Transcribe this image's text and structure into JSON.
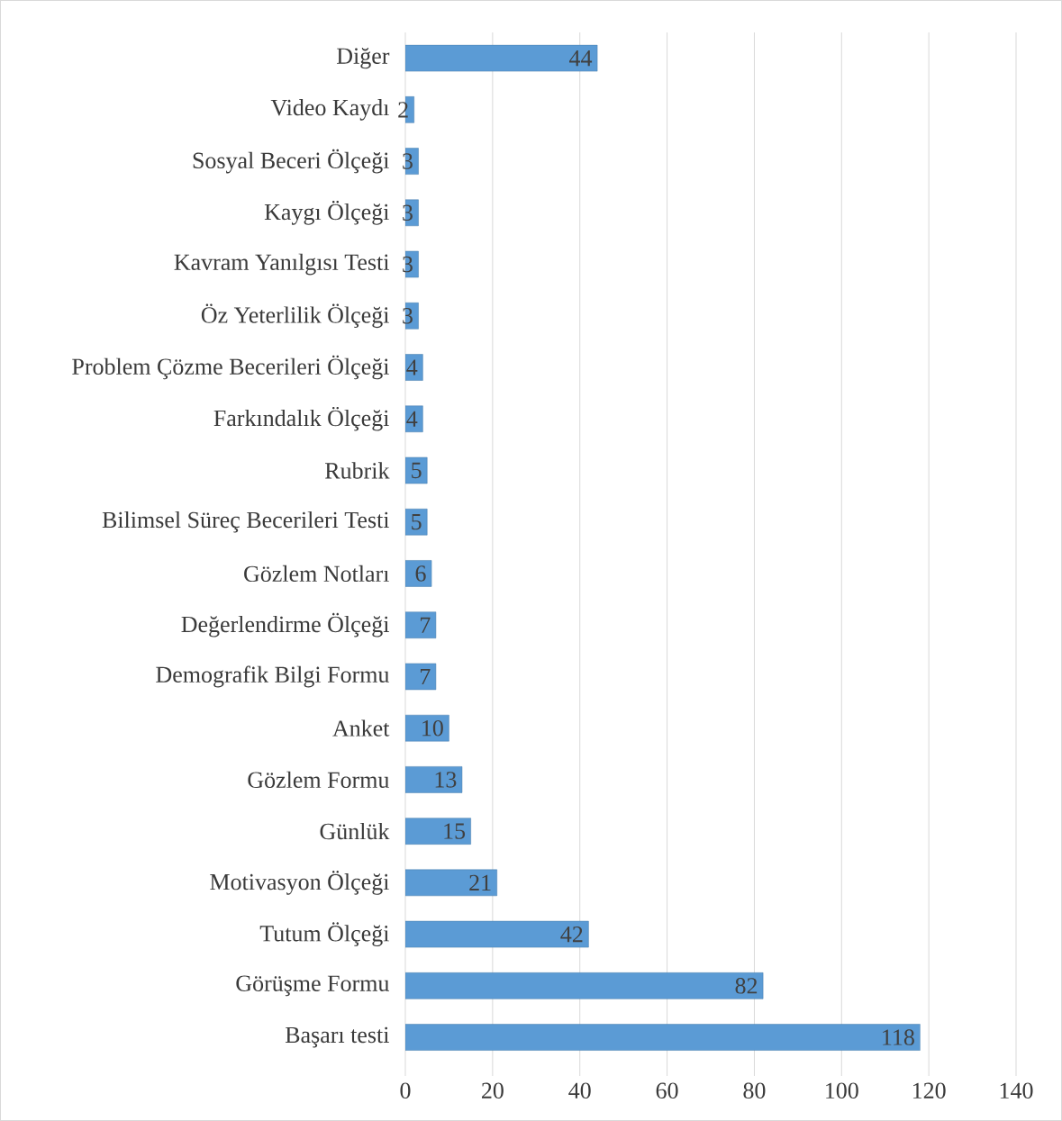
{
  "chart_data": {
    "type": "bar",
    "orientation": "horizontal",
    "categories": [
      "Diğer",
      "Video Kaydı",
      "Sosyal Beceri Ölçeği",
      "Kaygı Ölçeği",
      "Kavram Yanılgısı Testi",
      "Öz Yeterlilik Ölçeği",
      "Problem Çözme Becerileri Ölçeği",
      "Farkındalık Ölçeği",
      "Rubrik",
      "Bilimsel Süreç Becerileri Testi",
      "Gözlem Notları",
      "Değerlendirme Ölçeği",
      "Demografik Bilgi Formu",
      "Anket",
      "Gözlem Formu",
      "Günlük",
      "Motivasyon Ölçeği",
      "Tutum Ölçeği",
      "Görüşme Formu",
      "Başarı testi"
    ],
    "values": [
      44,
      2,
      3,
      3,
      3,
      3,
      4,
      4,
      5,
      5,
      6,
      7,
      7,
      10,
      13,
      15,
      21,
      42,
      82,
      118
    ],
    "color": "#5b9bd5",
    "xlim": [
      0,
      140
    ],
    "xticks": [
      0,
      20,
      40,
      60,
      80,
      100,
      120,
      140
    ],
    "grid": "x",
    "data_labels": true
  }
}
